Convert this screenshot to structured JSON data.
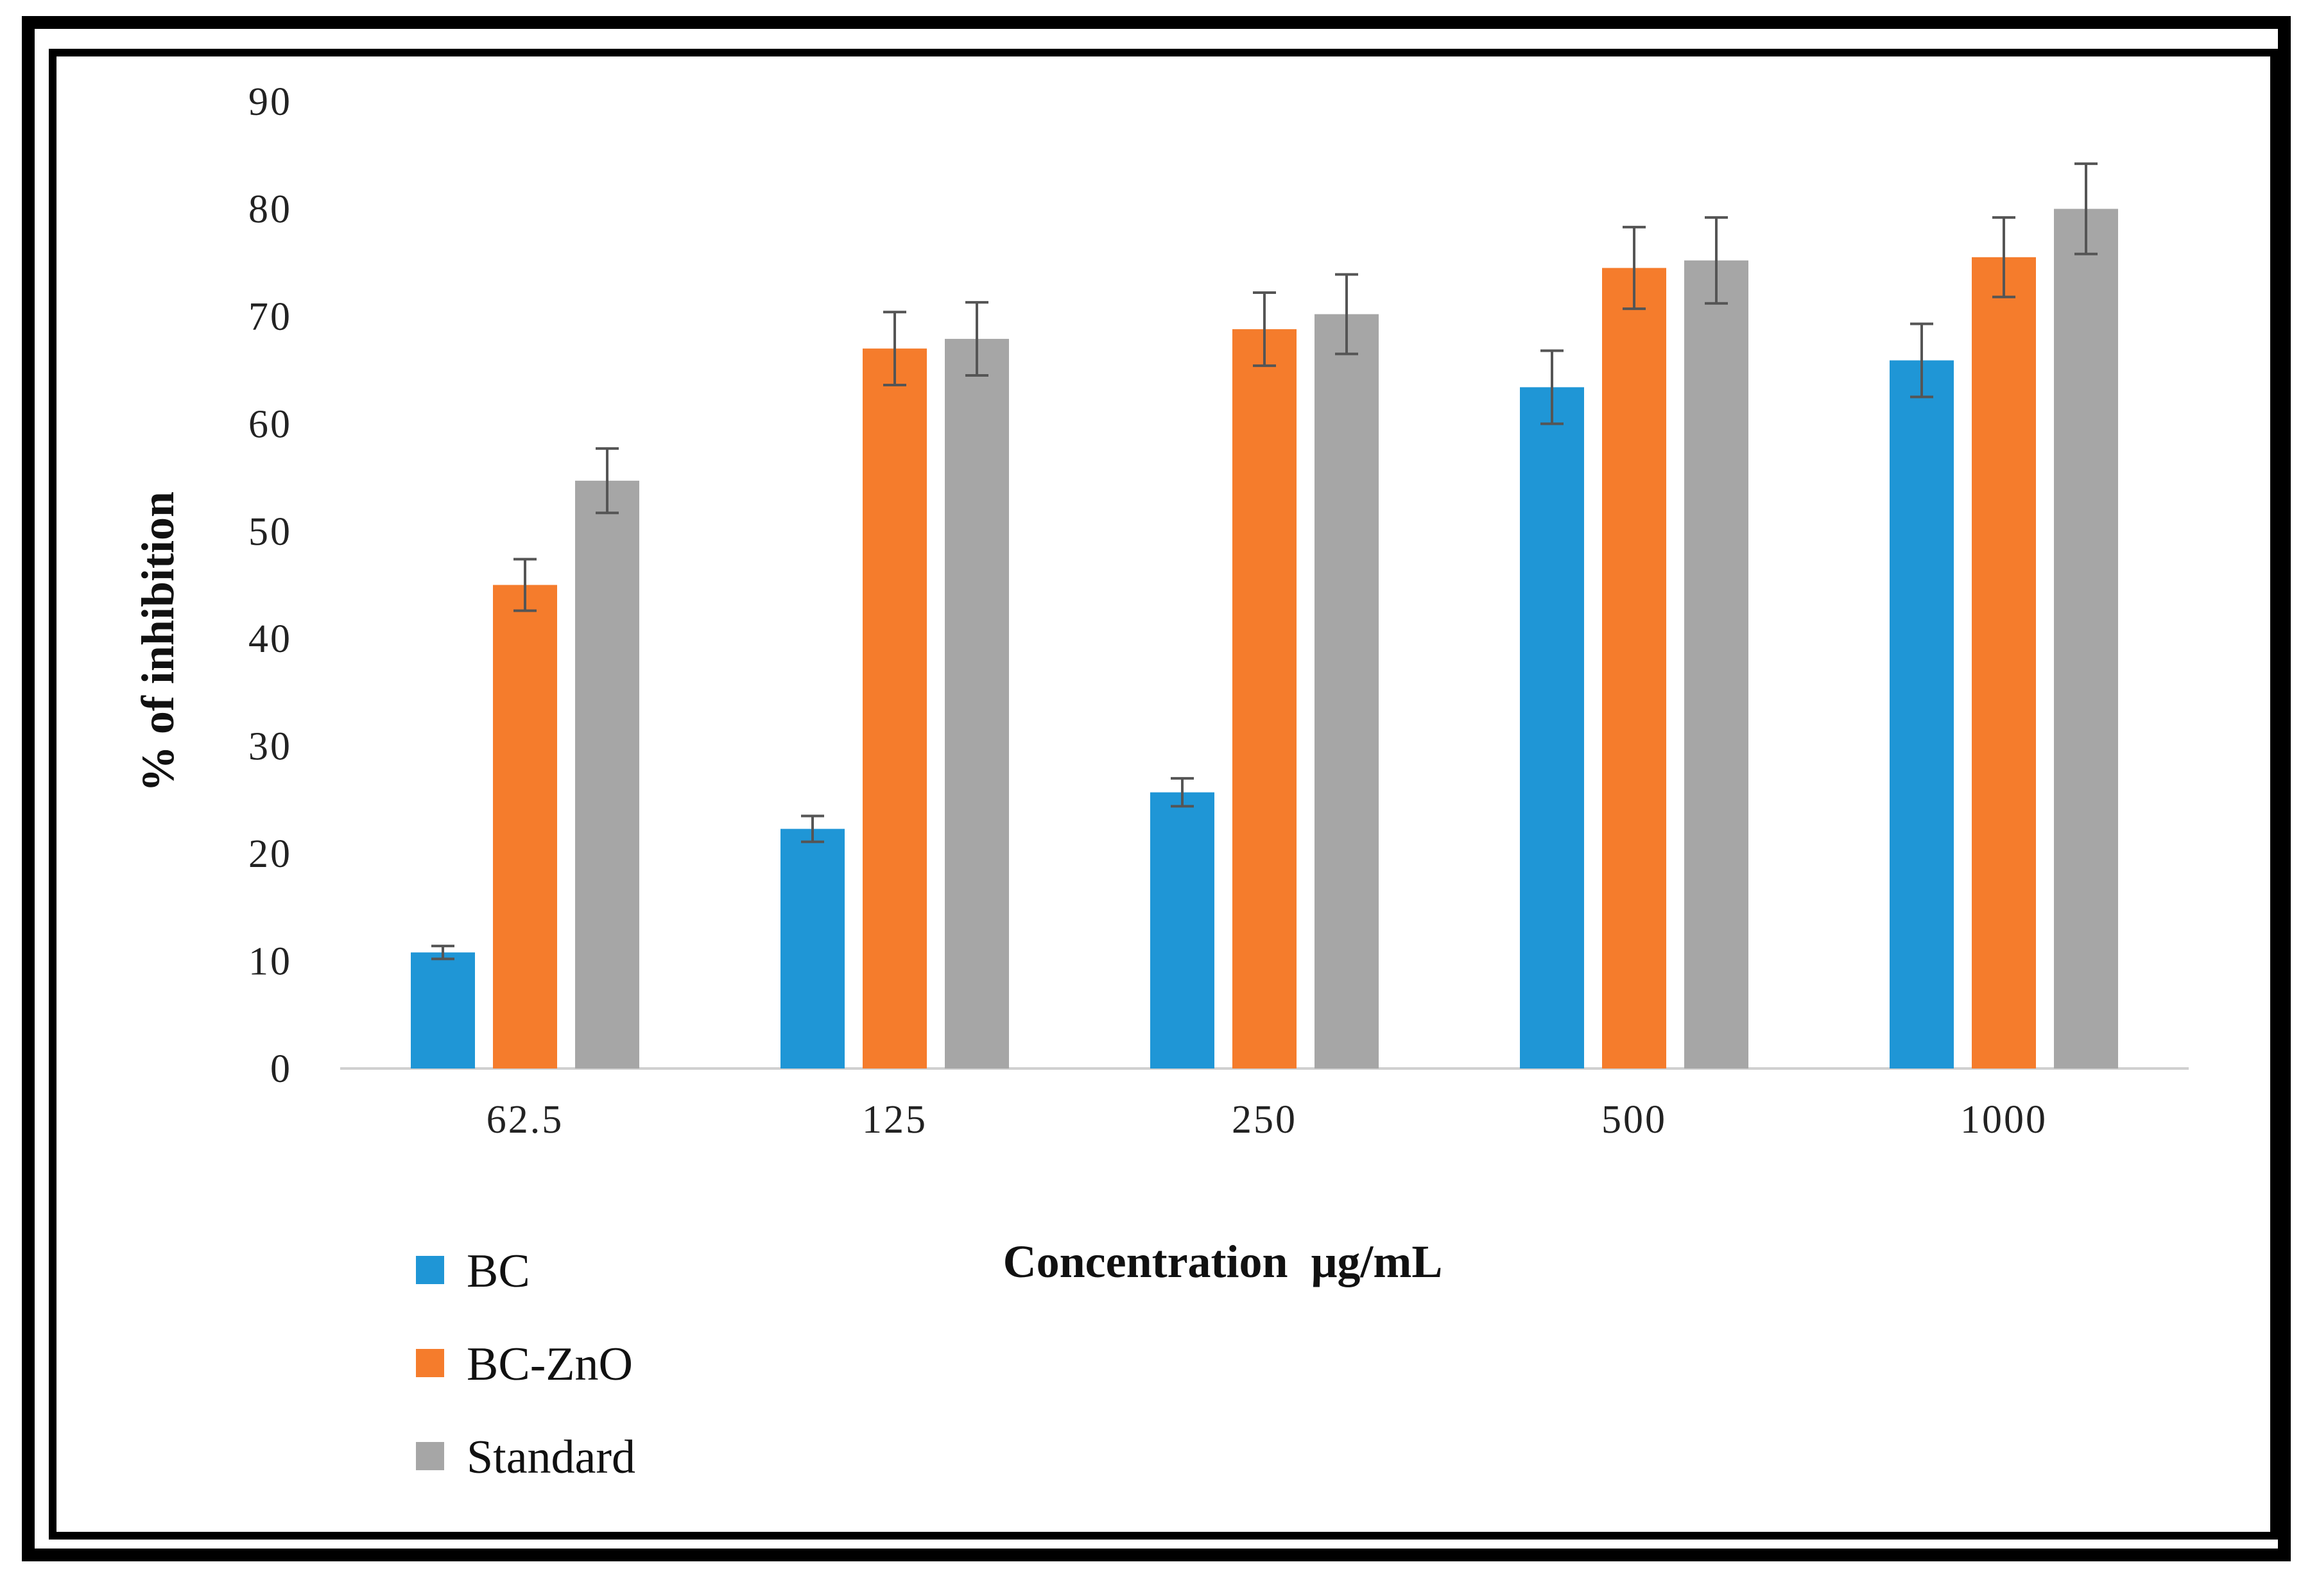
{
  "chart_data": {
    "type": "bar",
    "title": "",
    "xlabel": "Concentration  μg/mL",
    "ylabel": "% of inhibition",
    "ylim": [
      0,
      90
    ],
    "yticks": [
      0,
      10,
      20,
      30,
      40,
      50,
      60,
      70,
      80,
      90
    ],
    "categories": [
      "62.5",
      "125",
      "250",
      "500",
      "1000"
    ],
    "grid": false,
    "legend_position": "bottom-left",
    "series": [
      {
        "name": "BC",
        "color": "#1f96d6",
        "values": [
          10.8,
          22.3,
          25.7,
          63.4,
          65.9
        ],
        "errors": [
          0.6,
          1.2,
          1.3,
          3.4,
          3.4
        ]
      },
      {
        "name": "BC-ZnO",
        "color": "#f57c2c",
        "values": [
          45.0,
          67.0,
          68.8,
          74.5,
          75.5
        ],
        "errors": [
          2.4,
          3.4,
          3.4,
          3.8,
          3.7
        ]
      },
      {
        "name": "Standard",
        "color": "#a6a6a6",
        "values": [
          54.7,
          67.9,
          70.2,
          75.2,
          80.0
        ],
        "errors": [
          3.0,
          3.4,
          3.7,
          4.0,
          4.2
        ]
      }
    ]
  }
}
